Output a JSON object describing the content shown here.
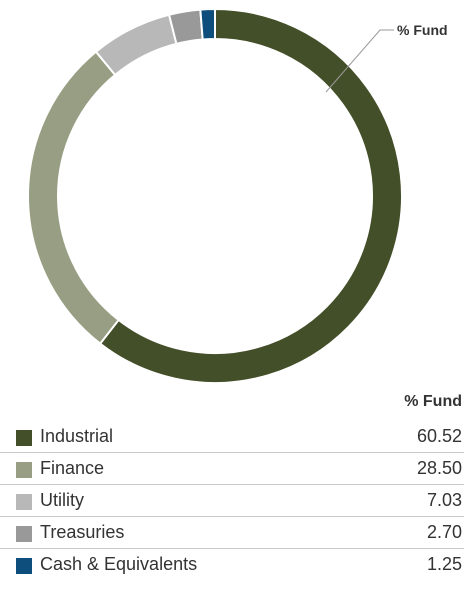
{
  "chart_data": {
    "type": "pie",
    "title": "",
    "callout_label": "% Fund",
    "column_header": "% Fund",
    "categories": [
      "Industrial",
      "Finance",
      "Utility",
      "Treasuries",
      "Cash & Equivalents"
    ],
    "values": [
      60.52,
      28.5,
      7.03,
      2.7,
      1.25
    ],
    "value_labels": [
      "60.52",
      "28.50",
      "7.03",
      "2.70",
      "1.25"
    ],
    "colors": [
      "#434f28",
      "#979e83",
      "#b8b8b8",
      "#999999",
      "#0d4e7c"
    ]
  }
}
